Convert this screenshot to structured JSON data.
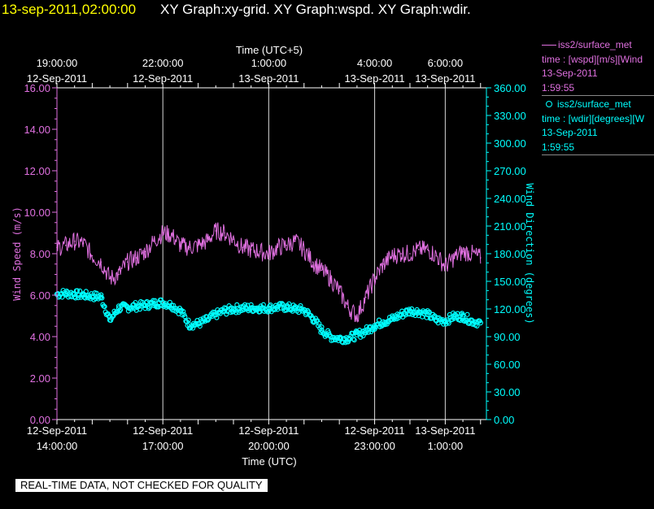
{
  "title": {
    "timestamp": "13-sep-2011,02:00:00",
    "graphs": "XY Graph:xy-grid.  XY Graph:wspd.  XY Graph:wdir."
  },
  "colors": {
    "timestamp": "#ffff00",
    "wspd": "#e070e0",
    "wdir": "#00ffff",
    "axis": "#ffffff",
    "background": "#000000"
  },
  "legend": {
    "wspd": {
      "name": "iss2/surface_met",
      "line": "time : [wspd][m/s][Wind",
      "date": "13-Sep-2011",
      "time": "1:59:55"
    },
    "wdir": {
      "name": "iss2/surface_met",
      "line": "time : [wdir][degrees][W",
      "date": "13-Sep-2011",
      "time": "1:59:55"
    }
  },
  "notice": "REAL-TIME DATA, NOT CHECKED FOR QUALITY",
  "chart_data": {
    "type": "line",
    "grid": "vertical lines at major time ticks",
    "top_axis": {
      "label": "Time (UTC+5)",
      "ticks": [
        {
          "hours": 0,
          "line1": "19:00:00",
          "line2": "12-Sep-2011"
        },
        {
          "hours": 3,
          "line1": "22:00:00",
          "line2": "12-Sep-2011"
        },
        {
          "hours": 6,
          "line1": "1:00:00",
          "line2": "13-Sep-2011"
        },
        {
          "hours": 9,
          "line1": "4:00:00",
          "line2": "13-Sep-2011"
        },
        {
          "hours": 11,
          "line1": "6:00:00",
          "line2": "13-Sep-2011"
        }
      ]
    },
    "bottom_axis": {
      "label": "Time (UTC)",
      "range": [
        "2011-09-12 14:00:00",
        "2011-09-13 02:10:00"
      ],
      "ticks": [
        {
          "hours": 0,
          "line1": "12-Sep-2011",
          "line2": "14:00:00"
        },
        {
          "hours": 3,
          "line1": "12-Sep-2011",
          "line2": "17:00:00"
        },
        {
          "hours": 6,
          "line1": "12-Sep-2011",
          "line2": "20:00:00"
        },
        {
          "hours": 9,
          "line1": "12-Sep-2011",
          "line2": "23:00:00"
        },
        {
          "hours": 11,
          "line1": "13-Sep-2011",
          "line2": "1:00:00"
        }
      ]
    },
    "left_axis": {
      "label": "Wind Speed (m/s)",
      "range": [
        0,
        16
      ],
      "ticks": [
        "0.00",
        "2.00",
        "4.00",
        "6.00",
        "8.00",
        "10.00",
        "12.00",
        "14.00",
        "16.00"
      ]
    },
    "right_axis": {
      "label": "Wind Direction (degrees)",
      "range": [
        0,
        360
      ],
      "ticks": [
        "0.00",
        "30.00",
        "60.00",
        "90.00",
        "120.00",
        "150.00",
        "180.00",
        "210.00",
        "240.00",
        "270.00",
        "300.00",
        "330.00",
        "360.00"
      ]
    },
    "series": [
      {
        "name": "iss2/surface_met",
        "axis": "left",
        "style": "line",
        "x_utc": [
          "14:00",
          "14:15",
          "14:30",
          "14:45",
          "15:00",
          "15:15",
          "15:30",
          "15:45",
          "16:00",
          "16:15",
          "16:30",
          "16:45",
          "17:00",
          "17:15",
          "17:30",
          "17:45",
          "18:00",
          "18:15",
          "18:30",
          "18:45",
          "19:00",
          "19:15",
          "19:30",
          "19:45",
          "20:00",
          "20:15",
          "20:30",
          "20:45",
          "21:00",
          "21:15",
          "21:30",
          "21:45",
          "22:00",
          "22:15",
          "22:30",
          "22:45",
          "23:00",
          "23:15",
          "23:30",
          "23:45",
          "0:00",
          "0:15",
          "0:30",
          "0:45",
          "1:00",
          "1:15",
          "1:30",
          "1:45",
          "2:00"
        ],
        "values": [
          8.3,
          8.4,
          8.6,
          8.5,
          7.9,
          7.6,
          6.8,
          7.0,
          7.6,
          7.8,
          8.1,
          8.6,
          9.0,
          8.9,
          8.4,
          8.3,
          8.4,
          8.6,
          9.1,
          9.0,
          8.7,
          8.3,
          8.2,
          8.1,
          8.0,
          8.3,
          8.4,
          8.6,
          8.2,
          7.6,
          7.2,
          6.8,
          6.2,
          5.4,
          5.0,
          5.9,
          6.8,
          7.5,
          7.9,
          8.0,
          8.0,
          8.2,
          8.2,
          7.9,
          7.4,
          7.8,
          8.1,
          8.0,
          7.8
        ]
      },
      {
        "name": "iss2/surface_met",
        "axis": "right",
        "style": "circles",
        "x_utc": [
          "14:00",
          "14:15",
          "14:30",
          "14:45",
          "15:00",
          "15:15",
          "15:30",
          "15:45",
          "16:00",
          "16:15",
          "16:30",
          "16:45",
          "17:00",
          "17:15",
          "17:30",
          "17:45",
          "18:00",
          "18:15",
          "18:30",
          "18:45",
          "19:00",
          "19:15",
          "19:30",
          "19:45",
          "20:00",
          "20:15",
          "20:30",
          "20:45",
          "21:00",
          "21:15",
          "21:30",
          "21:45",
          "22:00",
          "22:15",
          "22:30",
          "22:45",
          "23:00",
          "23:15",
          "23:30",
          "23:45",
          "0:00",
          "0:15",
          "0:30",
          "0:45",
          "1:00",
          "1:15",
          "1:30",
          "1:45",
          "2:00"
        ],
        "values": [
          136,
          137,
          136,
          135,
          134,
          133,
          108,
          121,
          122,
          123,
          124,
          126,
          127,
          124,
          118,
          103,
          104,
          108,
          114,
          118,
          120,
          121,
          121,
          121,
          121,
          122,
          122,
          120,
          119,
          110,
          97,
          90,
          88,
          88,
          92,
          96,
          102,
          106,
          109,
          114,
          118,
          117,
          114,
          108,
          107,
          112,
          112,
          107,
          105
        ]
      }
    ]
  }
}
